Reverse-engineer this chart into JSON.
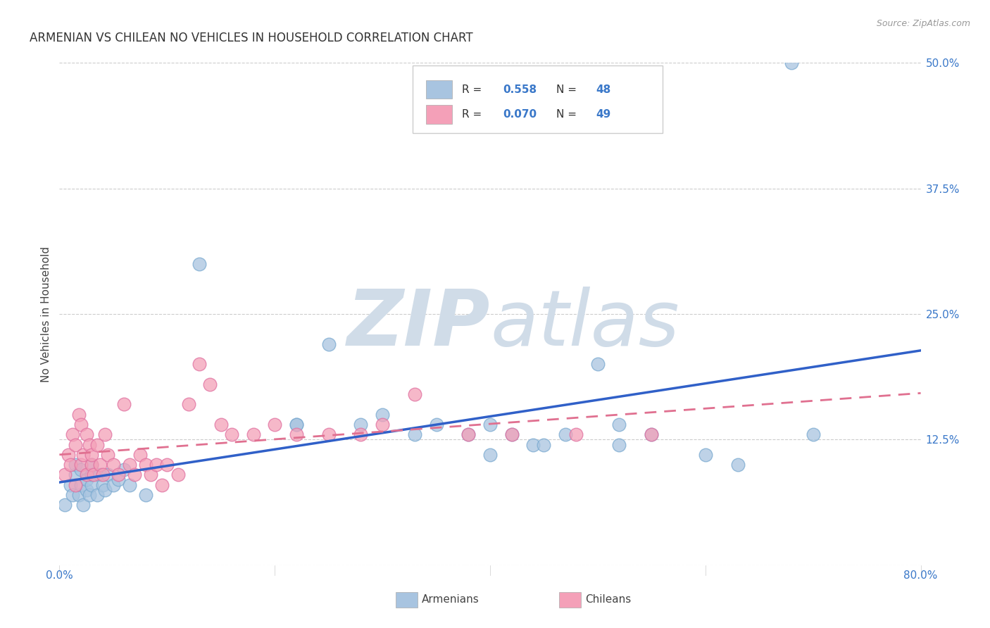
{
  "title": "ARMENIAN VS CHILEAN NO VEHICLES IN HOUSEHOLD CORRELATION CHART",
  "source": "Source: ZipAtlas.com",
  "ylabel": "No Vehicles in Household",
  "xlim": [
    0.0,
    0.8
  ],
  "ylim": [
    0.0,
    0.5
  ],
  "ylabel_ticks": [
    "12.5%",
    "25.0%",
    "37.5%",
    "50.0%"
  ],
  "ylabel_vals": [
    0.125,
    0.25,
    0.375,
    0.5
  ],
  "xlabel_ticks": [
    "0.0%",
    "80.0%"
  ],
  "xlabel_vals": [
    0.0,
    0.8
  ],
  "armenian_color": "#a8c4e0",
  "armenian_edge": "#7aaad0",
  "chilean_color": "#f4a0b8",
  "chilean_edge": "#e070a0",
  "armenian_line_color": "#3060c8",
  "chilean_line_color": "#e07090",
  "background_color": "#ffffff",
  "watermark_color": "#d0dce8",
  "title_fontsize": 12,
  "tick_fontsize": 11,
  "legend_r_armenian": "R = 0.558",
  "legend_n_armenian": "N = 48",
  "legend_r_chilean": "R = 0.070",
  "legend_n_chilean": "N = 49",
  "armenians_x": [
    0.005,
    0.01,
    0.012,
    0.015,
    0.015,
    0.018,
    0.02,
    0.02,
    0.022,
    0.025,
    0.025,
    0.028,
    0.03,
    0.03,
    0.03,
    0.035,
    0.038,
    0.04,
    0.042,
    0.045,
    0.05,
    0.055,
    0.06,
    0.065,
    0.08,
    0.13,
    0.22,
    0.25,
    0.3,
    0.35,
    0.38,
    0.4,
    0.42,
    0.44,
    0.47,
    0.5,
    0.52,
    0.55,
    0.6,
    0.63,
    0.22,
    0.28,
    0.33,
    0.4,
    0.45,
    0.52,
    0.68,
    0.7
  ],
  "armenians_y": [
    0.06,
    0.08,
    0.07,
    0.09,
    0.1,
    0.07,
    0.08,
    0.095,
    0.06,
    0.075,
    0.085,
    0.07,
    0.08,
    0.09,
    0.1,
    0.07,
    0.09,
    0.08,
    0.075,
    0.09,
    0.08,
    0.085,
    0.095,
    0.08,
    0.07,
    0.3,
    0.14,
    0.22,
    0.15,
    0.14,
    0.13,
    0.14,
    0.13,
    0.12,
    0.13,
    0.2,
    0.12,
    0.13,
    0.11,
    0.1,
    0.14,
    0.14,
    0.13,
    0.11,
    0.12,
    0.14,
    0.5,
    0.13
  ],
  "chileans_x": [
    0.005,
    0.008,
    0.01,
    0.012,
    0.015,
    0.015,
    0.018,
    0.02,
    0.02,
    0.022,
    0.025,
    0.025,
    0.028,
    0.03,
    0.03,
    0.032,
    0.035,
    0.038,
    0.04,
    0.042,
    0.045,
    0.05,
    0.055,
    0.06,
    0.065,
    0.07,
    0.075,
    0.08,
    0.085,
    0.09,
    0.095,
    0.1,
    0.11,
    0.12,
    0.13,
    0.14,
    0.15,
    0.16,
    0.18,
    0.2,
    0.22,
    0.25,
    0.28,
    0.3,
    0.33,
    0.38,
    0.42,
    0.48,
    0.55
  ],
  "chileans_y": [
    0.09,
    0.11,
    0.1,
    0.13,
    0.08,
    0.12,
    0.15,
    0.1,
    0.14,
    0.11,
    0.09,
    0.13,
    0.12,
    0.1,
    0.11,
    0.09,
    0.12,
    0.1,
    0.09,
    0.13,
    0.11,
    0.1,
    0.09,
    0.16,
    0.1,
    0.09,
    0.11,
    0.1,
    0.09,
    0.1,
    0.08,
    0.1,
    0.09,
    0.16,
    0.2,
    0.18,
    0.14,
    0.13,
    0.13,
    0.14,
    0.13,
    0.13,
    0.13,
    0.14,
    0.17,
    0.13,
    0.13,
    0.13,
    0.13
  ]
}
